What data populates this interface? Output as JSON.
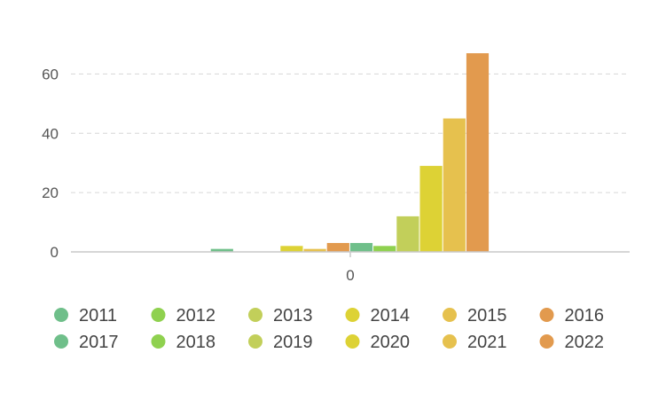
{
  "chart_data": {
    "type": "bar",
    "categories": [
      "0"
    ],
    "ylim": [
      0,
      70
    ],
    "yticks": [
      0,
      20,
      40,
      60
    ],
    "grid": true,
    "legend_position": "bottom",
    "series": [
      {
        "name": "2011",
        "values": [
          0
        ],
        "color": "#6fbf8a"
      },
      {
        "name": "2012",
        "values": [
          0
        ],
        "color": "#8fd14f"
      },
      {
        "name": "2013",
        "values": [
          0
        ],
        "color": "#c2cf5a"
      },
      {
        "name": "2014",
        "values": [
          0
        ],
        "color": "#ddd235"
      },
      {
        "name": "2015",
        "values": [
          0
        ],
        "color": "#e6c14e"
      },
      {
        "name": "2016",
        "values": [
          0
        ],
        "color": "#e29a4e"
      },
      {
        "name": "2017",
        "values": [
          1
        ],
        "color": "#6fbf8a"
      },
      {
        "name": "2018",
        "values": [
          0
        ],
        "color": "#8fd14f"
      },
      {
        "name": "2019",
        "values": [
          0
        ],
        "color": "#c2cf5a"
      },
      {
        "name": "2020",
        "values": [
          2
        ],
        "color": "#ddd235"
      },
      {
        "name": "2021",
        "values": [
          1
        ],
        "color": "#e6c14e"
      },
      {
        "name": "2022",
        "values": [
          3
        ],
        "color": "#e29a4e"
      },
      {
        "name": "2011",
        "values": [
          3
        ],
        "color": "#6fbf8a",
        "legend": false
      },
      {
        "name": "2012",
        "values": [
          2
        ],
        "color": "#8fd14f",
        "legend": false
      },
      {
        "name": "2013",
        "values": [
          12
        ],
        "color": "#c2cf5a",
        "legend": false
      },
      {
        "name": "2014",
        "values": [
          29
        ],
        "color": "#ddd235",
        "legend": false
      },
      {
        "name": "2015",
        "values": [
          45
        ],
        "color": "#e6c14e",
        "legend": false
      },
      {
        "name": "2016",
        "values": [
          67
        ],
        "color": "#e29a4e",
        "legend": false
      }
    ]
  }
}
